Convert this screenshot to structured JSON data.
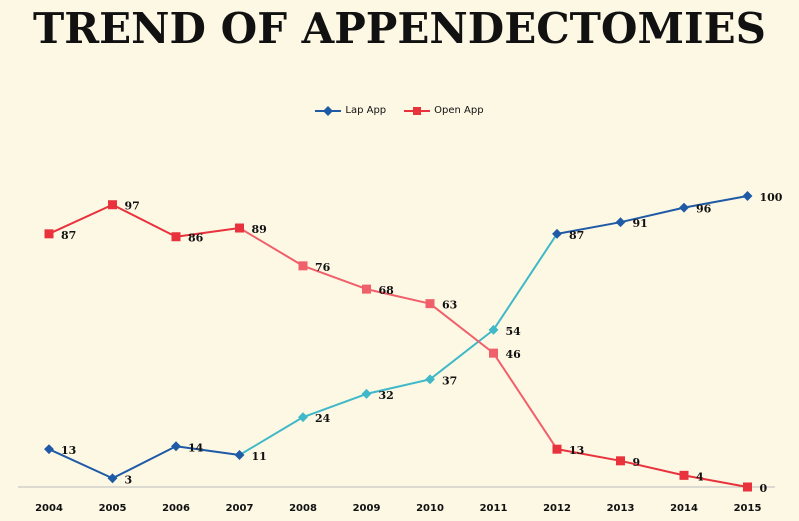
{
  "chart_data": {
    "type": "line",
    "title": "TREND OF APPENDECTOMIES",
    "x": [
      "2004",
      "2005",
      "2006",
      "2007",
      "2008",
      "2009",
      "2010",
      "2011",
      "2012",
      "2013",
      "2014",
      "2015"
    ],
    "ylim": [
      0,
      100
    ],
    "grid": false,
    "legend_position": "top-center",
    "series": [
      {
        "name": "Lap App",
        "values": [
          13,
          3,
          14,
          11,
          24,
          32,
          37,
          54,
          87,
          91,
          96,
          100
        ],
        "color_early": "#1f5aa6",
        "color_middle": "#3fb8c8",
        "marker": "diamond"
      },
      {
        "name": "Open App",
        "values": [
          87,
          97,
          86,
          89,
          76,
          68,
          63,
          46,
          13,
          9,
          4,
          0
        ],
        "color_early": "#e8323c",
        "color_middle": "#f0606a",
        "marker": "square"
      }
    ]
  },
  "colors": {
    "background": "#fdf8e4",
    "axis": "#bbbbbb"
  }
}
